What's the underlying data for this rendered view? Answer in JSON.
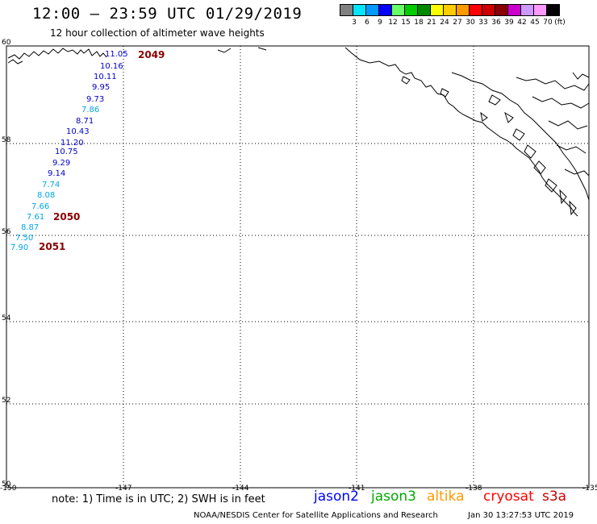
{
  "header": {
    "title": "12:00 – 23:59 UTC 01/29/2019",
    "subtitle": "12 hour collection of altimeter wave heights"
  },
  "legend": {
    "unit": "(ft)",
    "labels": [
      "3",
      "6",
      "9",
      "12",
      "15",
      "18",
      "21",
      "24",
      "27",
      "30",
      "33",
      "36",
      "39",
      "42",
      "45",
      "70"
    ],
    "colors": [
      "#808080",
      "#00e5ff",
      "#0099ff",
      "#0000ff",
      "#66ff66",
      "#00cc00",
      "#008800",
      "#ffff00",
      "#ffcc00",
      "#ff9900",
      "#ff0000",
      "#cc0000",
      "#880000",
      "#cc00cc",
      "#cc99ff",
      "#ff99ff",
      "#000000"
    ]
  },
  "axes": {
    "lat_labels": [
      "60",
      "58",
      "56",
      "54",
      "52",
      "50"
    ],
    "lon_labels": [
      "-150",
      "-147",
      "-144",
      "-141",
      "-138",
      "-135"
    ]
  },
  "observations": {
    "values": [
      "11.05",
      "10.16",
      "10.11",
      "9.95",
      "9.73",
      "7.86",
      "8.71",
      "10.43",
      "11.20",
      "10.75",
      "9.29",
      "9.14",
      "7.74",
      "8.08",
      "7.66",
      "7.61",
      "8.87",
      "7.50",
      "7.90"
    ],
    "colors": [
      "#0000cc",
      "#0000cc",
      "#0000cc",
      "#0000cc",
      "#0000cc",
      "#00a6e6",
      "#0000cc",
      "#0000cc",
      "#0000cc",
      "#0000cc",
      "#0000cc",
      "#0000cc",
      "#00a6e6",
      "#00a6e6",
      "#00a6e6",
      "#00a6e6",
      "#00a6e6",
      "#00a6e6",
      "#00a6e6"
    ]
  },
  "passes": [
    "2049",
    "2050",
    "2051"
  ],
  "footer": {
    "note": "note:  1) Time is in UTC;  2) SWH is in feet",
    "satellites": [
      {
        "name": "jason2",
        "color": "#0000ff"
      },
      {
        "name": "jason3",
        "color": "#00aa00"
      },
      {
        "name": "altika",
        "color": "#ff9900"
      },
      {
        "name": "cryosat",
        "color": "#ff0000"
      },
      {
        "name": "s3a",
        "color": "#cc0000"
      }
    ],
    "credit": "NOAA/NESDIS Center for Satellite Applications and Research",
    "timestamp": "Jan 30 13:27:53 UTC 2019"
  }
}
